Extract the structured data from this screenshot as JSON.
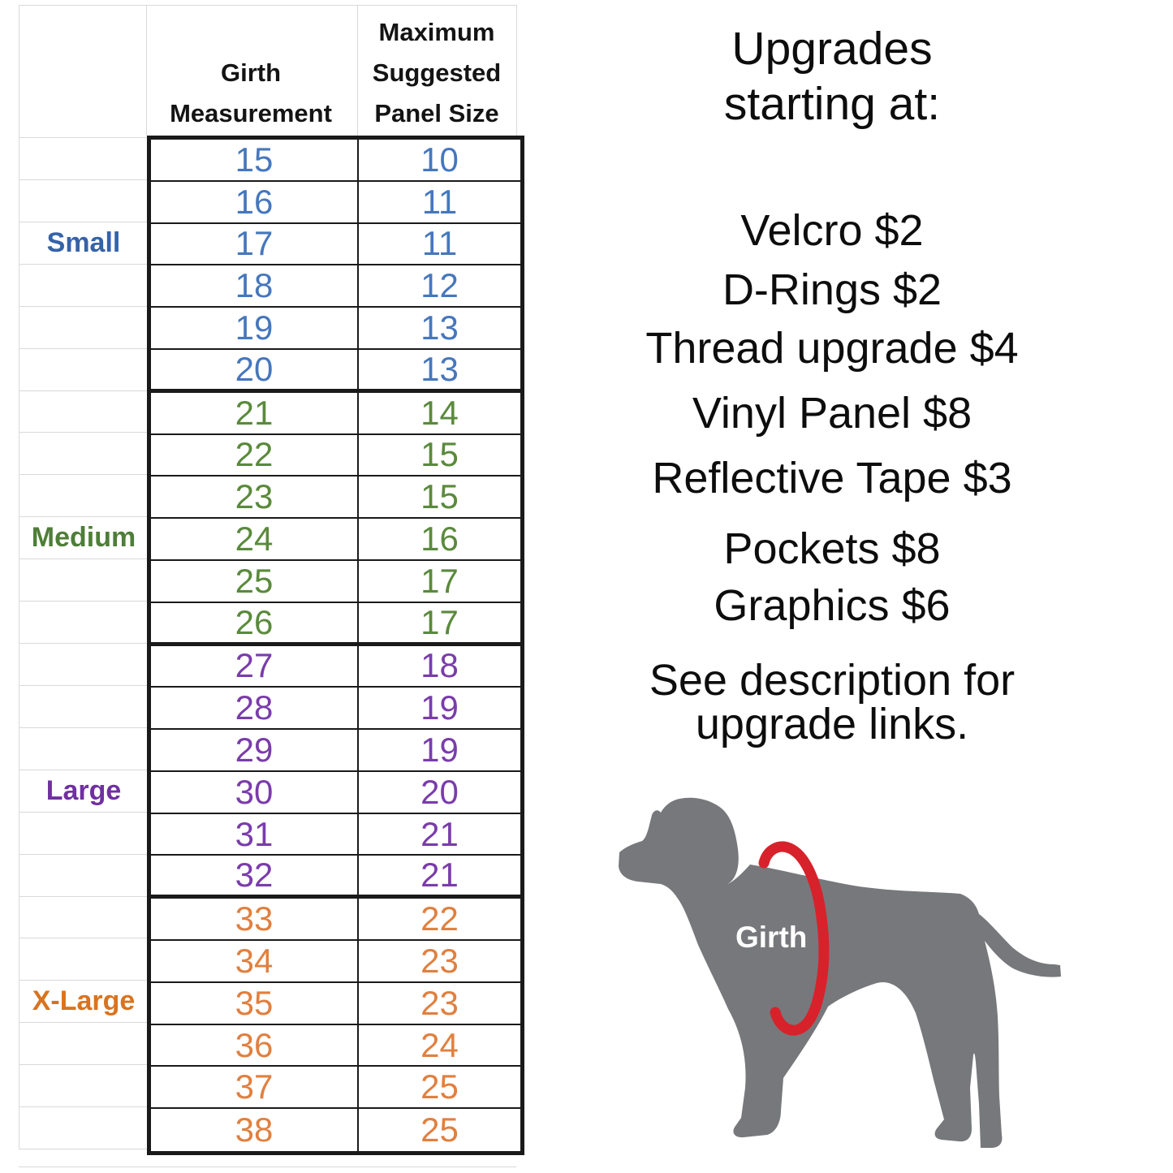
{
  "table": {
    "headers": {
      "girth_l1": "Girth",
      "girth_l2": "Measurement",
      "panel_l1": "Maximum",
      "panel_l2": "Suggested",
      "panel_l3": "Panel Size"
    },
    "size_groups": [
      {
        "label": "Small",
        "label_color": "#3563a8",
        "value_color": "#4677bd",
        "rows": [
          [
            15,
            10
          ],
          [
            16,
            11
          ],
          [
            17,
            11
          ],
          [
            18,
            12
          ],
          [
            19,
            13
          ],
          [
            20,
            13
          ]
        ]
      },
      {
        "label": "Medium",
        "label_color": "#4e7e38",
        "value_color": "#5a8a3c",
        "rows": [
          [
            21,
            14
          ],
          [
            22,
            15
          ],
          [
            23,
            15
          ],
          [
            24,
            16
          ],
          [
            25,
            17
          ],
          [
            26,
            17
          ]
        ]
      },
      {
        "label": "Large",
        "label_color": "#7030a0",
        "value_color": "#7a3cab",
        "rows": [
          [
            27,
            18
          ],
          [
            28,
            19
          ],
          [
            29,
            19
          ],
          [
            30,
            20
          ],
          [
            31,
            21
          ],
          [
            32,
            21
          ]
        ]
      },
      {
        "label": "X-Large",
        "label_color": "#d9731f",
        "value_color": "#e08040",
        "rows": [
          [
            33,
            22
          ],
          [
            34,
            23
          ],
          [
            35,
            23
          ],
          [
            36,
            24
          ],
          [
            37,
            25
          ],
          [
            38,
            25
          ]
        ]
      }
    ]
  },
  "upgrades": {
    "title_line1": "Upgrades",
    "title_line2": "starting at:",
    "items": [
      "Velcro $2",
      "D-Rings $2",
      "Thread upgrade $4",
      "Vinyl Panel $8",
      "Reflective Tape $3",
      "Pockets $8",
      "Graphics $6"
    ],
    "note_line1": "See description for",
    "note_line2": "upgrade links."
  },
  "diagram": {
    "girth_label": "Girth",
    "dog_color": "#77787b",
    "ring_color": "#d7222b",
    "label_color": "#ffffff"
  },
  "colors": {
    "table_line": "#1a1a1a",
    "grid_faint": "#d9d9d9",
    "text": "#0d0d0d"
  }
}
